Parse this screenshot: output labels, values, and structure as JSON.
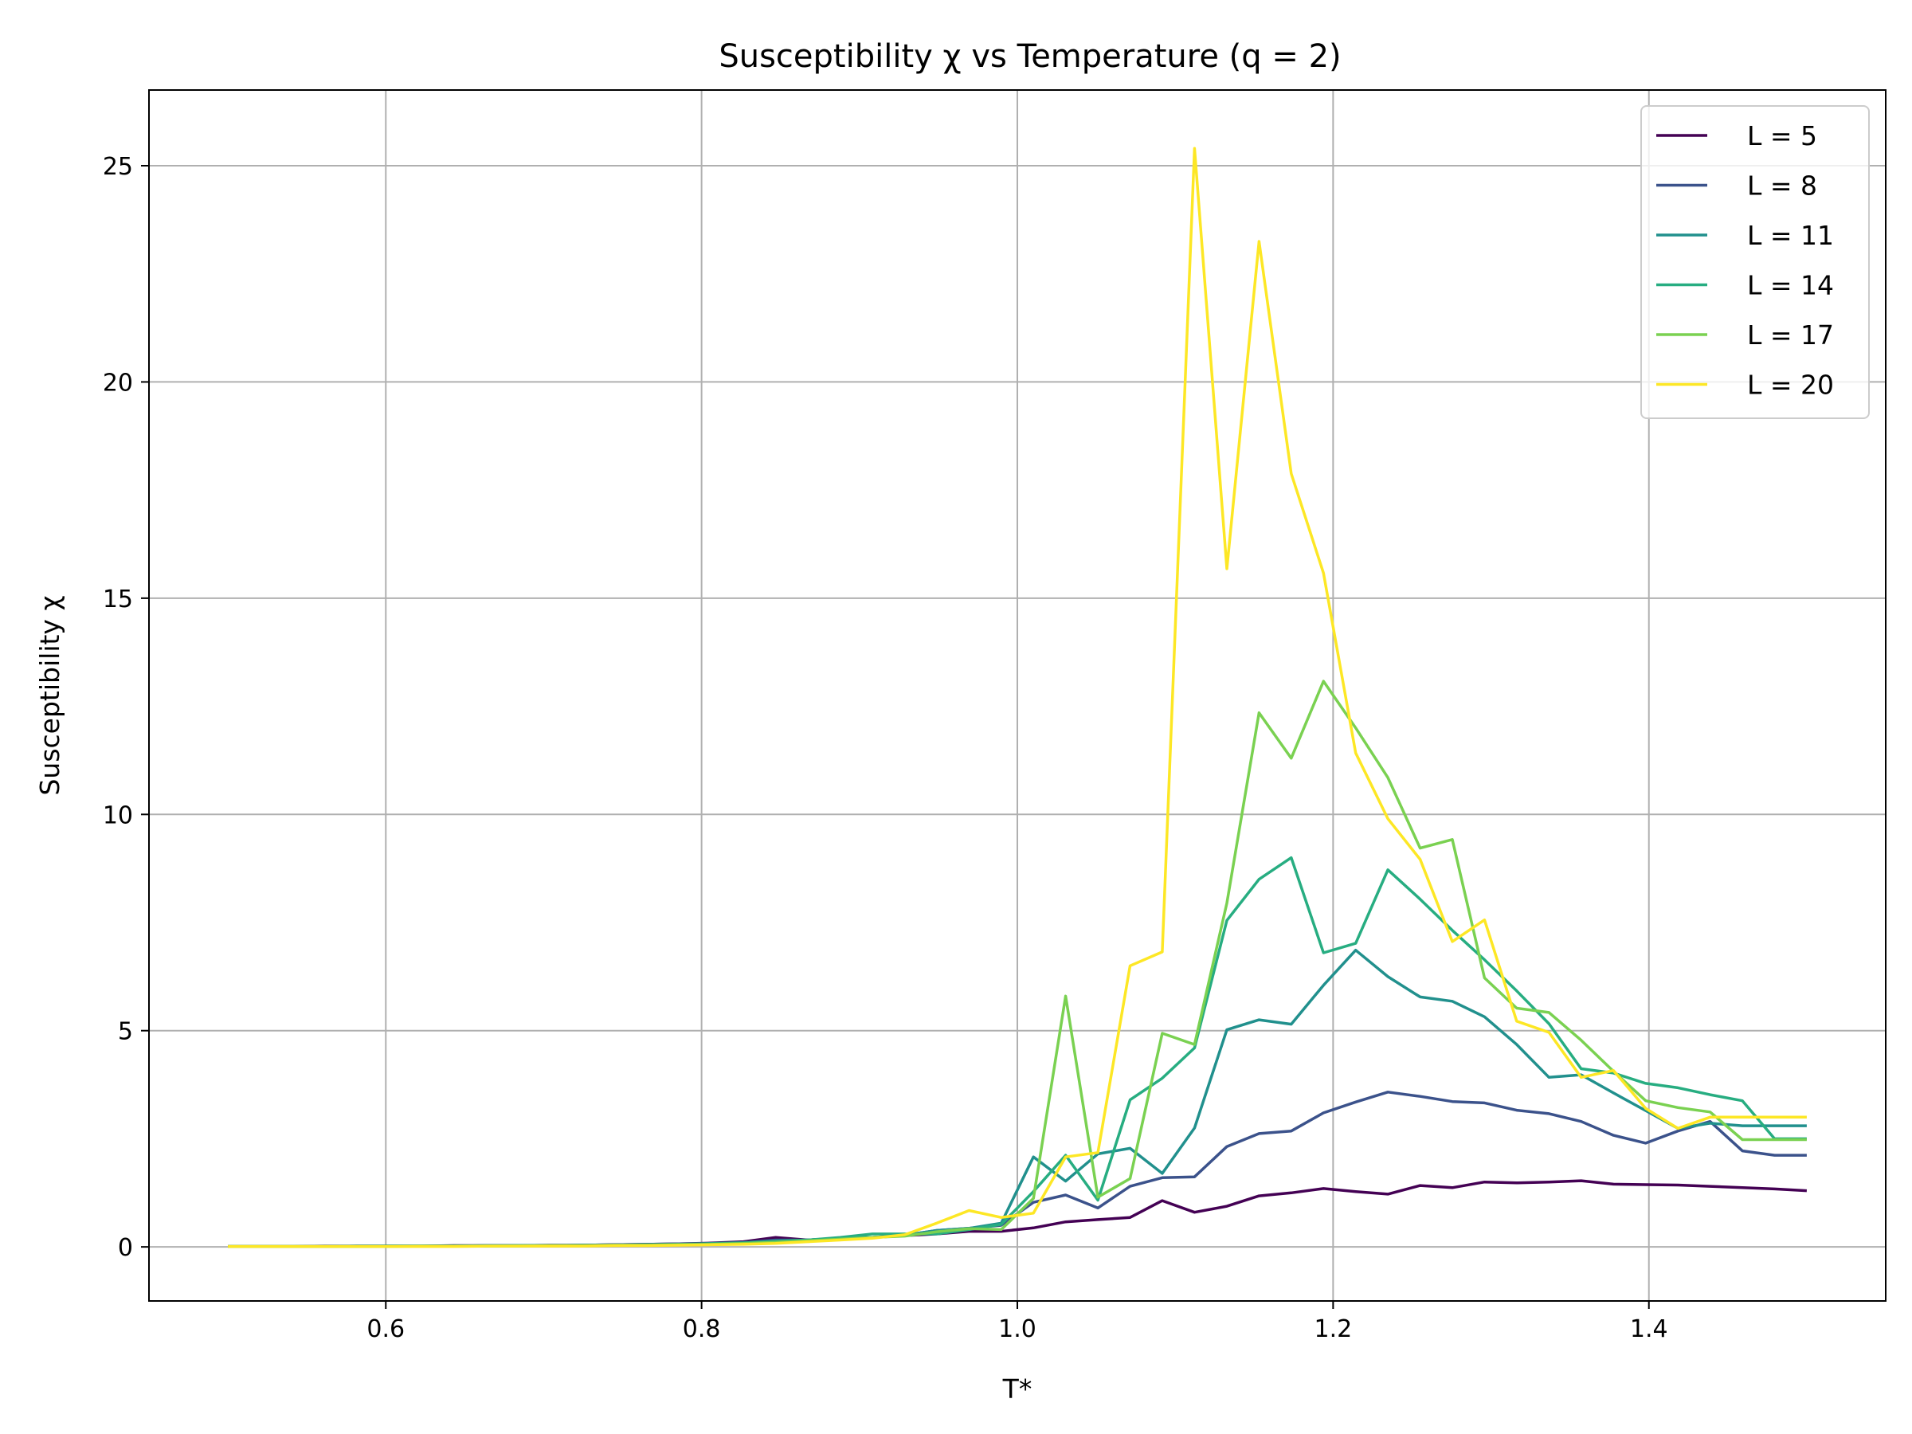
{
  "chart_data": {
    "type": "line",
    "title": "Susceptibility χ vs Temperature (q = 2)",
    "xlabel": "T*",
    "ylabel": "Susceptibility χ",
    "xlim": [
      0.45,
      1.55
    ],
    "ylim": [
      -1.25,
      26.75
    ],
    "xticks": [
      0.6,
      0.8,
      1.0,
      1.2,
      1.4
    ],
    "xtick_labels": [
      "0.6",
      "0.8",
      "1.0",
      "1.2",
      "1.4"
    ],
    "yticks": [
      0,
      5,
      10,
      15,
      20,
      25
    ],
    "ytick_labels": [
      "0",
      "5",
      "10",
      "15",
      "20",
      "25"
    ],
    "grid": true,
    "legend_position": "top-right",
    "x": [
      0.5,
      0.5204,
      0.5408,
      0.5612,
      0.5816,
      0.602,
      0.6224,
      0.6429,
      0.6633,
      0.6837,
      0.7041,
      0.7245,
      0.7449,
      0.7653,
      0.7857,
      0.8061,
      0.8265,
      0.8469,
      0.8673,
      0.8878,
      0.9082,
      0.9286,
      0.949,
      0.9694,
      0.9898,
      1.0102,
      1.0306,
      1.051,
      1.0714,
      1.0918,
      1.1122,
      1.1327,
      1.1531,
      1.1735,
      1.1939,
      1.2143,
      1.2347,
      1.2551,
      1.2755,
      1.2959,
      1.3163,
      1.3367,
      1.3571,
      1.3776,
      1.398,
      1.4184,
      1.4388,
      1.4592,
      1.4796,
      1.5
    ],
    "series": [
      {
        "name": "L = 5",
        "color": "#440154",
        "values": [
          0.01,
          0.01,
          0.01,
          0.02,
          0.02,
          0.02,
          0.02,
          0.03,
          0.03,
          0.03,
          0.04,
          0.04,
          0.05,
          0.06,
          0.07,
          0.09,
          0.12,
          0.22,
          0.16,
          0.2,
          0.22,
          0.26,
          0.3,
          0.36,
          0.36,
          0.44,
          0.58,
          0.63,
          0.68,
          1.07,
          0.8,
          0.94,
          1.18,
          1.25,
          1.35,
          1.28,
          1.22,
          1.42,
          1.37,
          1.5,
          1.48,
          1.5,
          1.53,
          1.45,
          1.44,
          1.43,
          1.4,
          1.37,
          1.34,
          1.3
        ]
      },
      {
        "name": "L = 8",
        "color": "#3b528b",
        "values": [
          0.01,
          0.01,
          0.01,
          0.01,
          0.02,
          0.02,
          0.02,
          0.02,
          0.03,
          0.03,
          0.03,
          0.04,
          0.05,
          0.06,
          0.07,
          0.08,
          0.1,
          0.16,
          0.16,
          0.2,
          0.22,
          0.27,
          0.38,
          0.43,
          0.5,
          1.03,
          1.2,
          0.9,
          1.4,
          1.6,
          1.62,
          2.32,
          2.62,
          2.68,
          3.1,
          3.35,
          3.58,
          3.48,
          3.36,
          3.33,
          3.16,
          3.08,
          2.9,
          2.58,
          2.4,
          2.68,
          2.9,
          2.22,
          2.12,
          2.12
        ]
      },
      {
        "name": "L = 11",
        "color": "#21908d",
        "values": [
          0.01,
          0.01,
          0.01,
          0.01,
          0.02,
          0.02,
          0.02,
          0.02,
          0.03,
          0.03,
          0.03,
          0.04,
          0.04,
          0.05,
          0.06,
          0.08,
          0.1,
          0.14,
          0.16,
          0.2,
          0.22,
          0.27,
          0.38,
          0.43,
          0.55,
          2.08,
          1.52,
          2.15,
          2.28,
          1.7,
          2.75,
          5.02,
          5.25,
          5.15,
          6.05,
          6.86,
          6.25,
          5.78,
          5.68,
          5.32,
          4.68,
          3.92,
          3.98,
          3.56,
          3.15,
          2.74,
          2.86,
          2.8,
          2.8,
          2.8
        ]
      },
      {
        "name": "L = 14",
        "color": "#27ad81",
        "values": [
          0.01,
          0.01,
          0.01,
          0.01,
          0.01,
          0.02,
          0.02,
          0.02,
          0.02,
          0.03,
          0.03,
          0.03,
          0.04,
          0.05,
          0.06,
          0.07,
          0.09,
          0.12,
          0.16,
          0.22,
          0.3,
          0.3,
          0.3,
          0.4,
          0.52,
          1.28,
          2.12,
          1.08,
          3.4,
          3.9,
          4.6,
          7.55,
          8.5,
          9.0,
          6.8,
          7.02,
          8.72,
          8.04,
          7.32,
          6.64,
          5.92,
          5.16,
          4.12,
          4.02,
          3.78,
          3.68,
          3.52,
          3.38,
          2.5,
          2.5
        ]
      },
      {
        "name": "L = 17",
        "color": "#7ad151",
        "values": [
          0.01,
          0.01,
          0.01,
          0.01,
          0.01,
          0.01,
          0.02,
          0.02,
          0.02,
          0.02,
          0.03,
          0.03,
          0.04,
          0.04,
          0.05,
          0.06,
          0.08,
          0.11,
          0.14,
          0.18,
          0.22,
          0.25,
          0.35,
          0.42,
          0.4,
          1.12,
          5.8,
          1.15,
          1.58,
          4.94,
          4.68,
          7.95,
          12.35,
          11.3,
          13.08,
          12.0,
          10.85,
          9.22,
          9.42,
          6.22,
          5.52,
          5.42,
          4.78,
          4.06,
          3.38,
          3.22,
          3.12,
          2.48,
          2.48,
          2.48
        ]
      },
      {
        "name": "L = 20",
        "color": "#fde725",
        "values": [
          0.01,
          0.01,
          0.01,
          0.01,
          0.01,
          0.01,
          0.01,
          0.01,
          0.02,
          0.02,
          0.02,
          0.02,
          0.03,
          0.03,
          0.04,
          0.05,
          0.06,
          0.08,
          0.12,
          0.16,
          0.2,
          0.28,
          0.55,
          0.84,
          0.68,
          0.78,
          2.08,
          2.18,
          6.5,
          6.82,
          25.4,
          15.68,
          23.25,
          17.88,
          15.58,
          11.42,
          9.9,
          8.96,
          7.06,
          7.56,
          5.22,
          4.96,
          3.92,
          4.08,
          3.2,
          2.74,
          3.0,
          3.0,
          3.0,
          3.0
        ]
      }
    ]
  }
}
